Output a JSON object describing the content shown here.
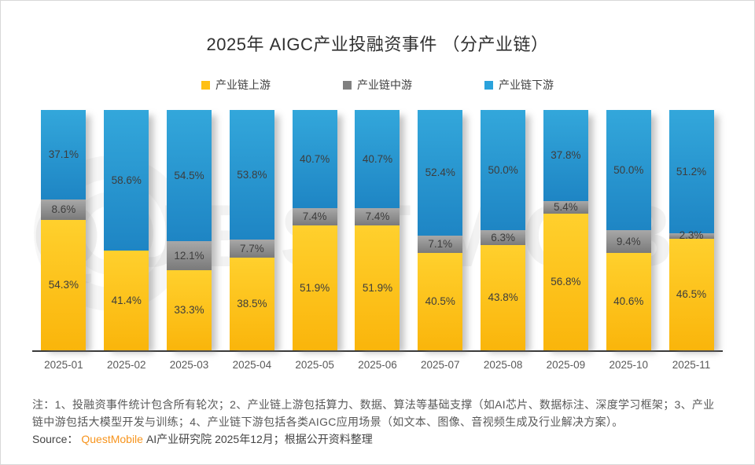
{
  "title": "2025年 AIGC产业投融资事件 （分产业链）",
  "watermark": "QUESTMOBILE",
  "legend": [
    {
      "label": "产业链上游",
      "color": "#FFC013"
    },
    {
      "label": "产业链中游",
      "color": "#808080"
    },
    {
      "label": "产业链下游",
      "color": "#2AA2DC"
    }
  ],
  "chart_data": {
    "type": "bar",
    "stacked": true,
    "unit": "%",
    "ylim": [
      0,
      100
    ],
    "grid": false,
    "legend_position": "top",
    "value_label_format": "{value}%",
    "categories": [
      "2025-01",
      "2025-02",
      "2025-03",
      "2025-04",
      "2025-05",
      "2025-06",
      "2025-07",
      "2025-08",
      "2025-09",
      "2025-10",
      "2025-11"
    ],
    "series": [
      {
        "id": "upstream",
        "name": "产业链上游",
        "stack_position": "bottom",
        "color": "#FFC013",
        "color_top": "#FFD02D",
        "color_bottom": "#FAB50B",
        "values": [
          54.3,
          41.4,
          33.3,
          38.5,
          51.9,
          51.9,
          40.5,
          43.8,
          56.8,
          40.6,
          46.5
        ]
      },
      {
        "id": "midstream",
        "name": "产业链中游",
        "stack_position": "middle",
        "color": "#808080",
        "color_top": "#A8A8A8",
        "color_bottom": "#7A7A7A",
        "values": [
          8.6,
          0,
          12.1,
          7.7,
          7.4,
          7.4,
          7.1,
          6.3,
          5.4,
          9.4,
          2.3
        ]
      },
      {
        "id": "downstream",
        "name": "产业链下游",
        "stack_position": "top",
        "color": "#2AA2DC",
        "color_top": "#33A7DB",
        "color_bottom": "#1E85C4",
        "values": [
          37.1,
          58.6,
          54.5,
          53.8,
          40.7,
          40.7,
          52.4,
          50.0,
          37.8,
          50.0,
          51.2
        ]
      }
    ]
  },
  "notes": {
    "text": "注：1、投融资事件统计包含所有轮次；2、产业链上游包括算力、数据、算法等基础支撑（如AI芯片、数据标注、深度学习框架；3、产业链中游包括大模型开发与训练；4、产业链下游包括各类AIGC应用场景（如文本、图像、音视频生成及行业解决方案）。"
  },
  "source": {
    "prefix": "Source：",
    "brand": "QuestMobile",
    "suffix": "AI产业研究院 2025年12月；根据公开资料整理"
  }
}
